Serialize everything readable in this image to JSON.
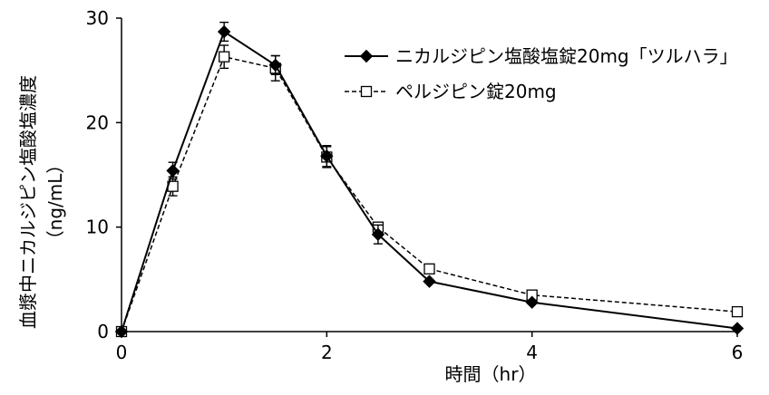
{
  "chart_data": {
    "type": "line",
    "xlabel": "時間（hr）",
    "ylabel": "血漿中ニカルジピン塩酸塩濃度",
    "ylabel_unit": "（ng/mL）",
    "xlim": [
      0,
      6
    ],
    "ylim": [
      0,
      30
    ],
    "xticks": [
      "0",
      "2",
      "4",
      "6"
    ],
    "yticks": [
      "0",
      "10",
      "20",
      "30"
    ],
    "grid": false,
    "legend_position": "top-right",
    "series": [
      {
        "name": "ニカルジピン塩酸塩錠20mg「ツルハラ」",
        "marker": "filled-diamond",
        "line": "solid",
        "color": "#000000",
        "x": [
          0,
          0.5,
          1,
          1.5,
          2,
          2.5,
          3,
          4,
          6
        ],
        "y": [
          0,
          15.4,
          28.7,
          25.5,
          16.8,
          9.3,
          4.8,
          2.8,
          0.3
        ],
        "err": [
          0,
          0.8,
          0.9,
          0.9,
          1.0,
          0.9,
          0,
          0,
          0
        ]
      },
      {
        "name": "ペルジピン錠20mg",
        "marker": "open-square",
        "line": "dashed",
        "color": "#000000",
        "x": [
          0,
          0.5,
          1,
          1.5,
          2,
          2.5,
          3,
          4,
          6
        ],
        "y": [
          0,
          13.9,
          26.3,
          25.2,
          16.7,
          10.0,
          6.0,
          3.5,
          1.9
        ],
        "err": [
          0,
          0.9,
          1.1,
          1.2,
          1.0,
          0,
          0,
          0,
          0
        ]
      }
    ]
  }
}
